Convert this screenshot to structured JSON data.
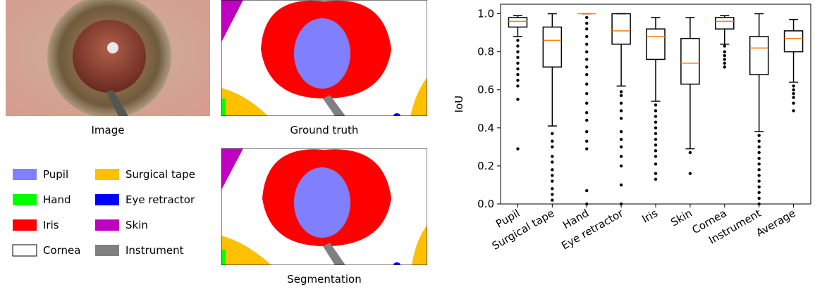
{
  "figure": {
    "captions": [
      "Image",
      "Ground truth",
      "Segmentation"
    ],
    "legend": [
      {
        "name": "Pupil",
        "color": "#8080ff"
      },
      {
        "name": "Hand",
        "color": "#00ff00"
      },
      {
        "name": "Iris",
        "color": "#ff0000"
      },
      {
        "name": "Cornea",
        "color": "#ffffff"
      },
      {
        "name": "Surgical tape",
        "color": "#ffc000"
      },
      {
        "name": "Eye retractor",
        "color": "#0000ff"
      },
      {
        "name": "Skin",
        "color": "#c000c0"
      },
      {
        "name": "Instrument",
        "color": "#808080"
      }
    ]
  },
  "chart_data": {
    "type": "box",
    "y_label": "IoU",
    "categories": [
      "Pupil",
      "Surgical tape",
      "Hand",
      "Eye retractor",
      "Iris",
      "Skin",
      "Cornea",
      "Instrument",
      "Average"
    ],
    "low": [
      0.88,
      0.41,
      1.0,
      0.62,
      0.54,
      0.29,
      0.84,
      0.38,
      0.64
    ],
    "q1": [
      0.93,
      0.72,
      1.0,
      0.84,
      0.76,
      0.63,
      0.92,
      0.68,
      0.8
    ],
    "median": [
      0.96,
      0.86,
      1.0,
      0.91,
      0.88,
      0.74,
      0.96,
      0.82,
      0.87
    ],
    "q3": [
      0.98,
      0.93,
      1.0,
      1.0,
      0.92,
      0.87,
      0.98,
      0.88,
      0.91
    ],
    "high": [
      0.99,
      1.0,
      1.0,
      1.0,
      0.98,
      0.98,
      0.99,
      1.0,
      0.97
    ],
    "outliers": [
      [
        0.86,
        0.83,
        0.8,
        0.77,
        0.74,
        0.71,
        0.68,
        0.65,
        0.62,
        0.55,
        0.29
      ],
      [
        0.37,
        0.33,
        0.3,
        0.25,
        0.22,
        0.18,
        0.15,
        0.12,
        0.08,
        0.05,
        0.02
      ],
      [
        0.98,
        0.95,
        0.92,
        0.88,
        0.84,
        0.8,
        0.76,
        0.72,
        0.68,
        0.63,
        0.58,
        0.53,
        0.48,
        0.44,
        0.38,
        0.33,
        0.29,
        0.07,
        0.0
      ],
      [
        0.59,
        0.57,
        0.53,
        0.49,
        0.45,
        0.38,
        0.34,
        0.3,
        0.25,
        0.2,
        0.1,
        0.0
      ],
      [
        0.52,
        0.49,
        0.46,
        0.43,
        0.4,
        0.37,
        0.34,
        0.31,
        0.28,
        0.25,
        0.21,
        0.16,
        0.13
      ],
      [
        0.27,
        0.16
      ],
      [
        0.83,
        0.8,
        0.78,
        0.76,
        0.74,
        0.72
      ],
      [
        0.36,
        0.33,
        0.3,
        0.27,
        0.24,
        0.21,
        0.18,
        0.15,
        0.12,
        0.09,
        0.06,
        0.03,
        0.0
      ],
      [
        0.62,
        0.6,
        0.58,
        0.56,
        0.53,
        0.49
      ]
    ],
    "box_color": "#000000",
    "median_color": "#ff7f0e",
    "ylim": [
      0,
      1.05
    ],
    "yticks": [
      {
        "value": 0,
        "label": "0.0"
      },
      {
        "value": 0.2,
        "label": "0.2"
      },
      {
        "value": 0.4,
        "label": "0.4"
      },
      {
        "value": 0.6,
        "label": "0.6"
      },
      {
        "value": 0.8,
        "label": "0.8"
      },
      {
        "value": 1,
        "label": "1.0"
      }
    ]
  }
}
